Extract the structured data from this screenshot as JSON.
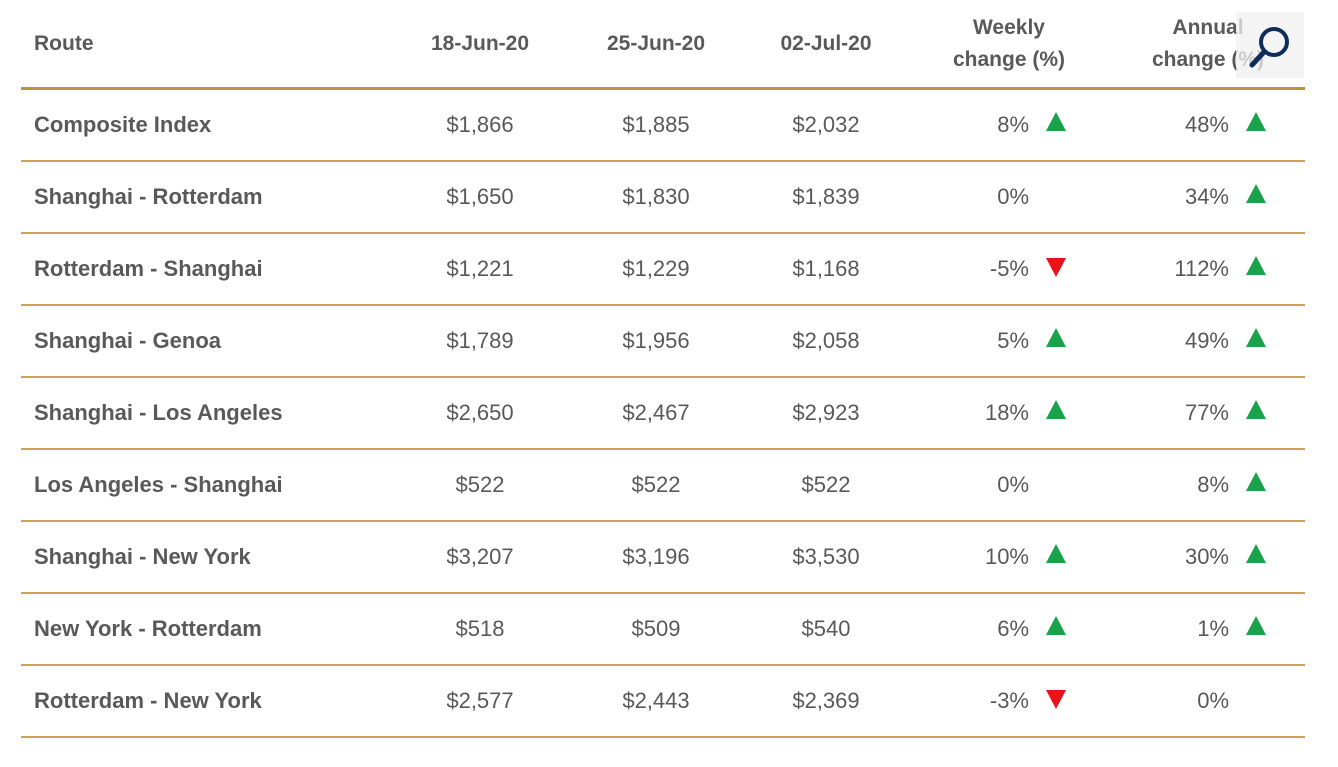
{
  "table": {
    "headers": {
      "route": "Route",
      "col1": "18-Jun-20",
      "col2": "25-Jun-20",
      "col3": "02-Jul-20",
      "weekly_line1": "Weekly",
      "weekly_line2": "change (%)",
      "annual_line1": "Annual",
      "annual_line2": "change (%)"
    },
    "rows": [
      {
        "route": "Composite Index",
        "v1": "$1,866",
        "v2": "$1,885",
        "v3": "$2,032",
        "weekly": "8%",
        "weekly_dir": "up",
        "annual": "48%",
        "annual_dir": "up"
      },
      {
        "route": "Shanghai - Rotterdam",
        "v1": "$1,650",
        "v2": "$1,830",
        "v3": "$1,839",
        "weekly": "0%",
        "weekly_dir": "none",
        "annual": "34%",
        "annual_dir": "up"
      },
      {
        "route": "Rotterdam - Shanghai",
        "v1": "$1,221",
        "v2": "$1,229",
        "v3": "$1,168",
        "weekly": "-5%",
        "weekly_dir": "down",
        "annual": "112%",
        "annual_dir": "up"
      },
      {
        "route": "Shanghai - Genoa",
        "v1": "$1,789",
        "v2": "$1,956",
        "v3": "$2,058",
        "weekly": "5%",
        "weekly_dir": "up",
        "annual": "49%",
        "annual_dir": "up"
      },
      {
        "route": "Shanghai - Los Angeles",
        "v1": "$2,650",
        "v2": "$2,467",
        "v3": "$2,923",
        "weekly": "18%",
        "weekly_dir": "up",
        "annual": "77%",
        "annual_dir": "up"
      },
      {
        "route": "Los Angeles - Shanghai",
        "v1": "$522",
        "v2": "$522",
        "v3": "$522",
        "weekly": "0%",
        "weekly_dir": "none",
        "annual": "8%",
        "annual_dir": "up"
      },
      {
        "route": "Shanghai - New York",
        "v1": "$3,207",
        "v2": "$3,196",
        "v3": "$3,530",
        "weekly": "10%",
        "weekly_dir": "up",
        "annual": "30%",
        "annual_dir": "up"
      },
      {
        "route": "New York - Rotterdam",
        "v1": "$518",
        "v2": "$509",
        "v3": "$540",
        "weekly": "6%",
        "weekly_dir": "up",
        "annual": "1%",
        "annual_dir": "up"
      },
      {
        "route": "Rotterdam - New York",
        "v1": "$2,577",
        "v2": "$2,443",
        "v3": "$2,369",
        "weekly": "-3%",
        "weekly_dir": "down",
        "annual": "0%",
        "annual_dir": "none"
      }
    ]
  },
  "zoom": {
    "icon": "magnifier-icon"
  },
  "colors": {
    "rule": "#b8923d",
    "text": "#595959",
    "up": "#1aa34a",
    "down": "#e8141b",
    "zoom_icon": "#0f2d5c"
  }
}
